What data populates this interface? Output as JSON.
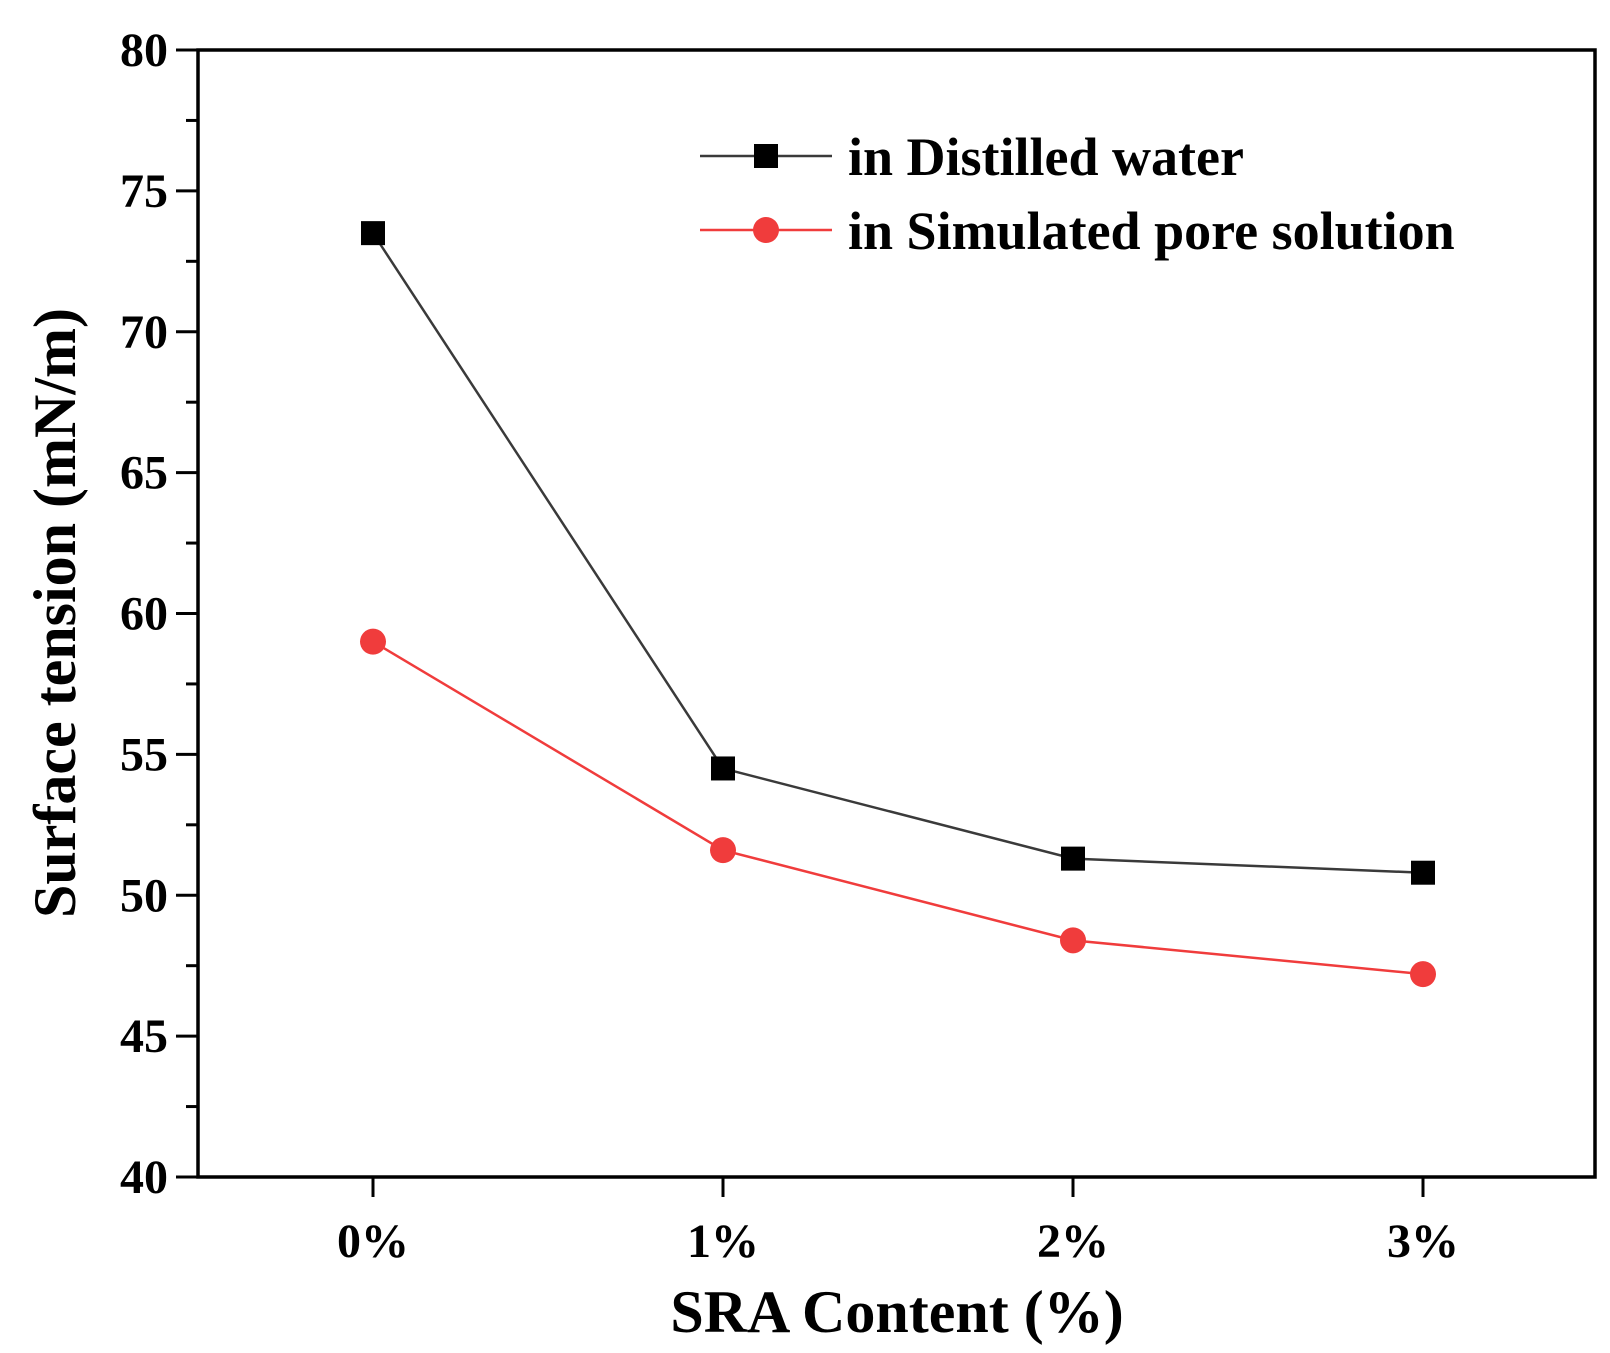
{
  "chart_data": {
    "type": "line",
    "title": "",
    "xlabel": "SRA Content (%)",
    "ylabel": "Surface tension (mN/m)",
    "categories": [
      "0%",
      "1%",
      "2%",
      "3%"
    ],
    "ylim": [
      40,
      80
    ],
    "yticks": [
      40,
      45,
      50,
      55,
      60,
      65,
      70,
      75,
      80
    ],
    "y_minor_step": 2.5,
    "grid": false,
    "legend_position": "top-right",
    "series": [
      {
        "name": "in Distilled water",
        "values": [
          73.5,
          54.5,
          51.3,
          50.8
        ],
        "color": "#000000",
        "line_color": "#3a3a3a",
        "marker": "square"
      },
      {
        "name": "in Simulated pore solution",
        "values": [
          59.0,
          51.6,
          48.4,
          47.2
        ],
        "color": "#f03c3c",
        "line_color": "#f03c3c",
        "marker": "circle"
      }
    ]
  }
}
